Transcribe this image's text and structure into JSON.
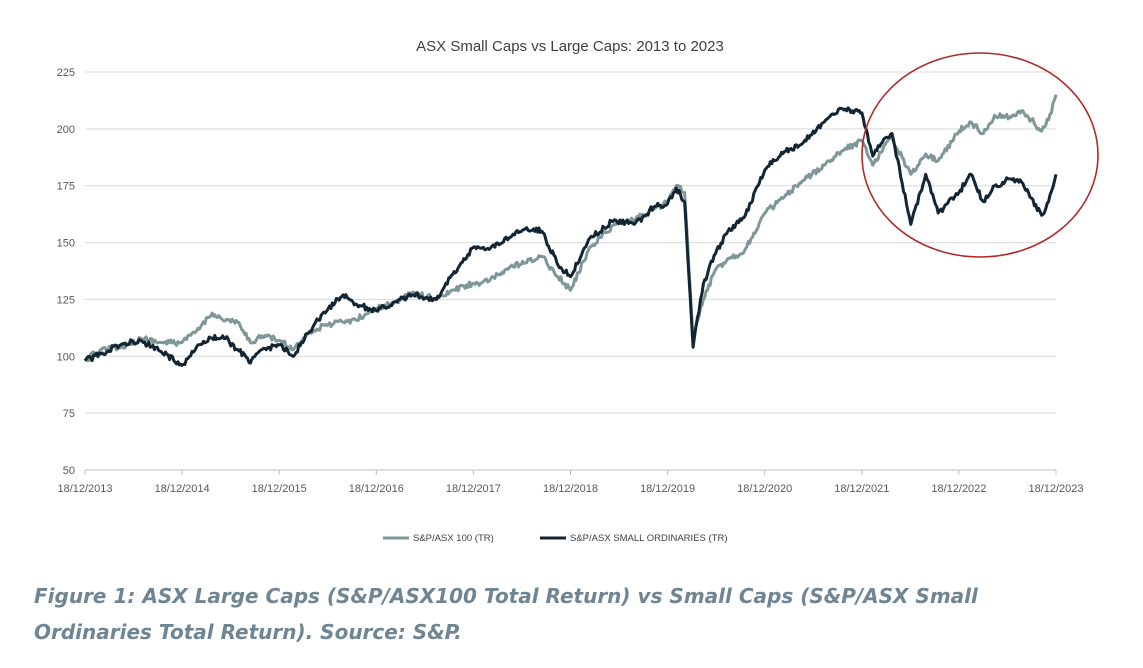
{
  "chart_data": {
    "type": "line",
    "title": "ASX Small Caps vs Large Caps: 2013 to 2023",
    "xlabel": "",
    "ylabel": "",
    "x": [
      "18/12/2013",
      "18/12/2014",
      "18/12/2015",
      "18/12/2016",
      "18/12/2017",
      "18/12/2018",
      "18/12/2019",
      "18/12/2020",
      "18/12/2021",
      "18/12/2022",
      "18/12/2023"
    ],
    "x_ticks": [
      "18/12/2013",
      "18/12/2014",
      "18/12/2015",
      "18/12/2016",
      "18/12/2017",
      "18/12/2018",
      "18/12/2019",
      "18/12/2020",
      "18/12/2021",
      "18/12/2022",
      "18/12/2023"
    ],
    "y_ticks": [
      "50",
      "75",
      "100",
      "125",
      "150",
      "175",
      "200",
      "225"
    ],
    "ylim": [
      50,
      225
    ],
    "grid": true,
    "legend_position": "bottom",
    "series": [
      {
        "name": "S&P/ASX 100 (TR)",
        "color": "#7f9797",
        "points": [
          [
            "2013-12-18",
            98
          ],
          [
            "2014-02-15",
            103
          ],
          [
            "2014-05-01",
            104
          ],
          [
            "2014-07-15",
            108
          ],
          [
            "2014-10-01",
            106
          ],
          [
            "2014-12-18",
            106
          ],
          [
            "2015-02-10",
            111
          ],
          [
            "2015-04-10",
            119
          ],
          [
            "2015-05-20",
            116
          ],
          [
            "2015-07-15",
            115
          ],
          [
            "2015-09-01",
            106
          ],
          [
            "2015-10-15",
            109
          ],
          [
            "2015-12-18",
            107
          ],
          [
            "2016-02-10",
            103
          ],
          [
            "2016-04-01",
            110
          ],
          [
            "2016-06-20",
            114
          ],
          [
            "2016-08-15",
            115
          ],
          [
            "2016-10-01",
            116
          ],
          [
            "2016-12-18",
            121
          ],
          [
            "2017-03-01",
            124
          ],
          [
            "2017-05-01",
            128
          ],
          [
            "2017-08-01",
            125
          ],
          [
            "2017-10-01",
            129
          ],
          [
            "2017-12-18",
            132
          ],
          [
            "2018-02-15",
            133
          ],
          [
            "2018-05-01",
            139
          ],
          [
            "2018-07-01",
            141
          ],
          [
            "2018-09-01",
            144
          ],
          [
            "2018-11-01",
            135
          ],
          [
            "2018-12-18",
            129
          ],
          [
            "2019-03-01",
            148
          ],
          [
            "2019-06-01",
            158
          ],
          [
            "2019-08-15",
            160
          ],
          [
            "2019-11-01",
            165
          ],
          [
            "2019-12-18",
            168
          ],
          [
            "2020-01-20",
            175
          ],
          [
            "2020-02-20",
            172
          ],
          [
            "2020-03-23",
            108
          ],
          [
            "2020-05-01",
            125
          ],
          [
            "2020-06-15",
            138
          ],
          [
            "2020-08-01",
            143
          ],
          [
            "2020-10-01",
            146
          ],
          [
            "2020-12-18",
            163
          ],
          [
            "2021-03-01",
            170
          ],
          [
            "2021-05-01",
            176
          ],
          [
            "2021-08-15",
            186
          ],
          [
            "2021-10-01",
            190
          ],
          [
            "2021-12-18",
            195
          ],
          [
            "2022-01-28",
            184
          ],
          [
            "2022-03-15",
            193
          ],
          [
            "2022-04-10",
            196
          ],
          [
            "2022-06-20",
            180
          ],
          [
            "2022-08-15",
            189
          ],
          [
            "2022-10-01",
            186
          ],
          [
            "2022-12-18",
            199
          ],
          [
            "2023-02-01",
            203
          ],
          [
            "2023-03-20",
            198
          ],
          [
            "2023-05-01",
            206
          ],
          [
            "2023-07-01",
            205
          ],
          [
            "2023-08-15",
            208
          ],
          [
            "2023-10-25",
            199
          ],
          [
            "2023-11-20",
            204
          ],
          [
            "2023-12-18",
            215
          ]
        ]
      },
      {
        "name": "S&P/ASX SMALL ORDINARIES (TR)",
        "color": "#132532",
        "points": [
          [
            "2013-12-18",
            98
          ],
          [
            "2014-02-15",
            101
          ],
          [
            "2014-05-01",
            105
          ],
          [
            "2014-07-15",
            107
          ],
          [
            "2014-10-01",
            102
          ],
          [
            "2014-12-18",
            96
          ],
          [
            "2015-02-10",
            104
          ],
          [
            "2015-04-10",
            108
          ],
          [
            "2015-05-20",
            109
          ],
          [
            "2015-07-15",
            103
          ],
          [
            "2015-09-01",
            97
          ],
          [
            "2015-10-15",
            103
          ],
          [
            "2015-12-18",
            105
          ],
          [
            "2016-02-10",
            100
          ],
          [
            "2016-04-01",
            110
          ],
          [
            "2016-06-20",
            121
          ],
          [
            "2016-08-15",
            127
          ],
          [
            "2016-10-01",
            123
          ],
          [
            "2016-12-18",
            120
          ],
          [
            "2017-03-01",
            124
          ],
          [
            "2017-05-01",
            127
          ],
          [
            "2017-08-01",
            125
          ],
          [
            "2017-10-01",
            136
          ],
          [
            "2017-12-18",
            148
          ],
          [
            "2018-02-15",
            147
          ],
          [
            "2018-05-01",
            152
          ],
          [
            "2018-07-01",
            156
          ],
          [
            "2018-09-01",
            155
          ],
          [
            "2018-11-01",
            140
          ],
          [
            "2018-12-18",
            135
          ],
          [
            "2019-03-01",
            152
          ],
          [
            "2019-06-01",
            160
          ],
          [
            "2019-08-15",
            158
          ],
          [
            "2019-11-01",
            166
          ],
          [
            "2019-12-18",
            167
          ],
          [
            "2020-01-20",
            174
          ],
          [
            "2020-02-20",
            168
          ],
          [
            "2020-03-23",
            104
          ],
          [
            "2020-05-01",
            132
          ],
          [
            "2020-06-15",
            145
          ],
          [
            "2020-08-01",
            155
          ],
          [
            "2020-10-01",
            161
          ],
          [
            "2020-12-18",
            182
          ],
          [
            "2021-03-01",
            190
          ],
          [
            "2021-05-01",
            193
          ],
          [
            "2021-08-15",
            205
          ],
          [
            "2021-10-01",
            209
          ],
          [
            "2021-12-18",
            207
          ],
          [
            "2022-01-28",
            188
          ],
          [
            "2022-03-15",
            196
          ],
          [
            "2022-04-10",
            198
          ],
          [
            "2022-06-20",
            158
          ],
          [
            "2022-08-15",
            180
          ],
          [
            "2022-10-01",
            163
          ],
          [
            "2022-12-18",
            172
          ],
          [
            "2023-02-01",
            180
          ],
          [
            "2023-03-20",
            168
          ],
          [
            "2023-05-01",
            175
          ],
          [
            "2023-07-01",
            178
          ],
          [
            "2023-08-15",
            176
          ],
          [
            "2023-10-25",
            162
          ],
          [
            "2023-11-20",
            168
          ],
          [
            "2023-12-18",
            180
          ]
        ]
      }
    ],
    "annotation": {
      "type": "ellipse",
      "color": "#b02a2a"
    }
  },
  "caption": {
    "line1": "Figure 1: ASX Large Caps (S&P/ASX100 Total Return) vs Small Caps (S&P/ASX Small",
    "line2": "Ordinaries Total Return). Source: S&P."
  }
}
